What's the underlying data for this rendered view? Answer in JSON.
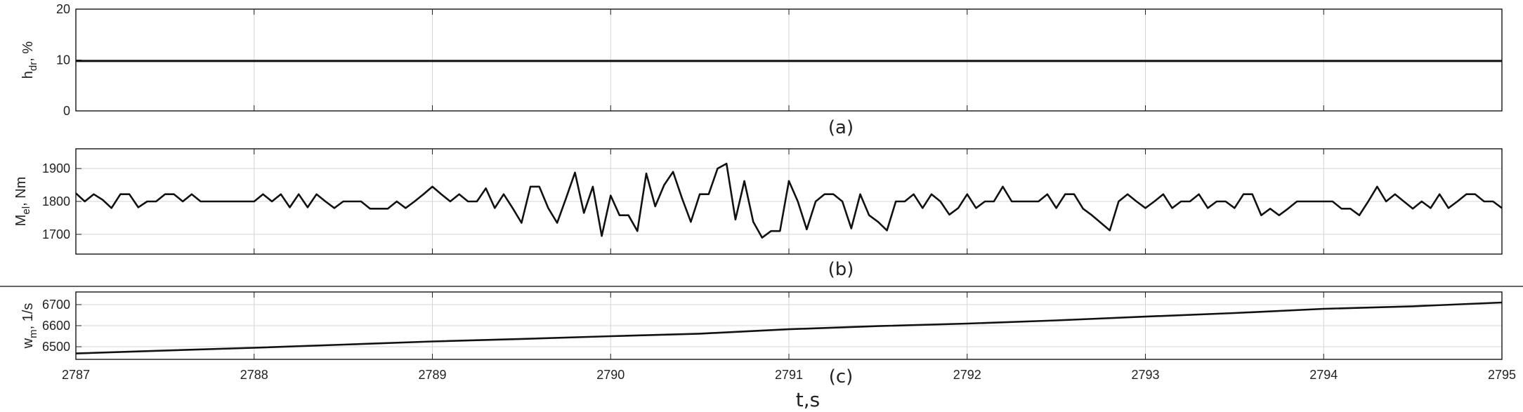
{
  "chart_data": [
    {
      "type": "line",
      "panel_label": "(a)",
      "ylabel": {
        "main": "h",
        "sub": "dr",
        "unit": ", %"
      },
      "xlim": [
        2787,
        2795
      ],
      "ylim": [
        0,
        20
      ],
      "yticks": [
        "0",
        "10",
        "20"
      ],
      "grid": true,
      "series": [
        {
          "x": [
            2787,
            2795
          ],
          "values": [
            9.8,
            9.8
          ]
        }
      ]
    },
    {
      "type": "line",
      "panel_label": "(b)",
      "ylabel": {
        "main": "M",
        "sub": "el",
        "unit": ", Nm"
      },
      "xlim": [
        2787,
        2795
      ],
      "ylim": [
        1640,
        1960
      ],
      "yticks": [
        "1700",
        "1800",
        "1900"
      ],
      "grid": true,
      "series": [
        {
          "x": [
            2787.0,
            2787.05,
            2787.1,
            2787.15,
            2787.2,
            2787.25,
            2787.3,
            2787.35,
            2787.4,
            2787.45,
            2787.5,
            2787.55,
            2787.6,
            2787.65,
            2787.7,
            2787.75,
            2787.8,
            2787.85,
            2787.9,
            2787.95,
            2788.0,
            2788.05,
            2788.1,
            2788.15,
            2788.2,
            2788.25,
            2788.3,
            2788.35,
            2788.4,
            2788.45,
            2788.5,
            2788.55,
            2788.6,
            2788.65,
            2788.7,
            2788.75,
            2788.8,
            2788.85,
            2788.9,
            2788.95,
            2789.0,
            2789.05,
            2789.1,
            2789.15,
            2789.2,
            2789.25,
            2789.3,
            2789.35,
            2789.4,
            2789.45,
            2789.5,
            2789.55,
            2789.6,
            2789.65,
            2789.7,
            2789.75,
            2789.8,
            2789.85,
            2789.9,
            2789.95,
            2790.0,
            2790.05,
            2790.1,
            2790.15,
            2790.2,
            2790.25,
            2790.3,
            2790.35,
            2790.4,
            2790.45,
            2790.5,
            2790.55,
            2790.6,
            2790.65,
            2790.7,
            2790.75,
            2790.8,
            2790.85,
            2790.9,
            2790.95,
            2791.0,
            2791.05,
            2791.1,
            2791.15,
            2791.2,
            2791.25,
            2791.3,
            2791.35,
            2791.4,
            2791.45,
            2791.5,
            2791.55,
            2791.6,
            2791.65,
            2791.7,
            2791.75,
            2791.8,
            2791.85,
            2791.9,
            2791.95,
            2792.0,
            2792.05,
            2792.1,
            2792.15,
            2792.2,
            2792.25,
            2792.3,
            2792.35,
            2792.4,
            2792.45,
            2792.5,
            2792.55,
            2792.6,
            2792.65,
            2792.7,
            2792.75,
            2792.8,
            2792.85,
            2792.9,
            2792.95,
            2793.0,
            2793.05,
            2793.1,
            2793.15,
            2793.2,
            2793.25,
            2793.3,
            2793.35,
            2793.4,
            2793.45,
            2793.5,
            2793.55,
            2793.6,
            2793.65,
            2793.7,
            2793.75,
            2793.8,
            2793.85,
            2793.9,
            2793.95,
            2794.0,
            2794.05,
            2794.1,
            2794.15,
            2794.2,
            2794.25,
            2794.3,
            2794.35,
            2794.4,
            2794.45,
            2794.5,
            2794.55,
            2794.6,
            2794.65,
            2794.7,
            2794.75,
            2794.8,
            2794.85,
            2794.9,
            2794.95,
            2795.0
          ],
          "values": [
            1825,
            1800,
            1822,
            1805,
            1780,
            1822,
            1822,
            1782,
            1800,
            1800,
            1822,
            1822,
            1800,
            1822,
            1800,
            1800,
            1800,
            1800,
            1800,
            1800,
            1800,
            1822,
            1800,
            1822,
            1782,
            1822,
            1782,
            1822,
            1800,
            1780,
            1800,
            1800,
            1800,
            1778,
            1778,
            1778,
            1800,
            1780,
            1800,
            1822,
            1845,
            1822,
            1800,
            1822,
            1800,
            1800,
            1840,
            1780,
            1822,
            1780,
            1735,
            1845,
            1845,
            1780,
            1735,
            1810,
            1888,
            1765,
            1845,
            1695,
            1818,
            1758,
            1758,
            1710,
            1885,
            1785,
            1850,
            1890,
            1810,
            1738,
            1822,
            1822,
            1900,
            1915,
            1745,
            1862,
            1738,
            1690,
            1710,
            1710,
            1862,
            1800,
            1715,
            1800,
            1822,
            1822,
            1800,
            1718,
            1822,
            1758,
            1738,
            1712,
            1800,
            1800,
            1822,
            1780,
            1822,
            1800,
            1760,
            1780,
            1822,
            1780,
            1800,
            1800,
            1845,
            1800,
            1800,
            1800,
            1800,
            1822,
            1780,
            1822,
            1822,
            1778,
            1758,
            1735,
            1712,
            1800,
            1822,
            1800,
            1780,
            1800,
            1822,
            1780,
            1800,
            1800,
            1822,
            1780,
            1800,
            1800,
            1780,
            1822,
            1822,
            1758,
            1778,
            1758,
            1778,
            1800,
            1800,
            1800,
            1800,
            1800,
            1778,
            1778,
            1758,
            1800,
            1845,
            1800,
            1822,
            1800,
            1778,
            1800,
            1780,
            1822,
            1780,
            1800,
            1822,
            1822,
            1800,
            1800,
            1780
          ]
        }
      ]
    },
    {
      "type": "line",
      "panel_label": "(c)",
      "ylabel": {
        "main": "w",
        "sub": "m",
        "unit": ", 1/s"
      },
      "xlim": [
        2787,
        2795
      ],
      "ylim": [
        6440,
        6760
      ],
      "yticks": [
        "6500",
        "6600",
        "6700"
      ],
      "xticks": [
        "2787",
        "2788",
        "2789",
        "2790",
        "2791",
        "2792",
        "2793",
        "2794",
        "2795"
      ],
      "xlabel": "t,s",
      "grid": true,
      "series": [
        {
          "x": [
            2787.0,
            2787.5,
            2788.0,
            2788.5,
            2789.0,
            2789.5,
            2790.0,
            2790.5,
            2791.0,
            2791.5,
            2792.0,
            2792.5,
            2793.0,
            2793.5,
            2794.0,
            2794.5,
            2795.0
          ],
          "values": [
            6468,
            6482,
            6495,
            6510,
            6525,
            6537,
            6550,
            6562,
            6583,
            6598,
            6610,
            6625,
            6643,
            6660,
            6680,
            6692,
            6710
          ]
        }
      ]
    }
  ]
}
